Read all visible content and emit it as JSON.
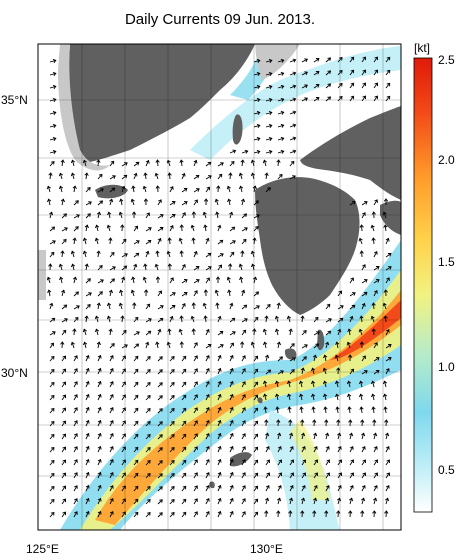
{
  "title": "Daily Currents 09 Jun. 2013.",
  "colorbar": {
    "unit": "[kt]",
    "ticks": [
      {
        "value": 2.5,
        "label": "2.5"
      },
      {
        "value": 2.0,
        "label": "2.0"
      },
      {
        "value": 1.5,
        "label": "1.5"
      },
      {
        "value": 1.0,
        "label": "1.0"
      },
      {
        "value": 0.5,
        "label": "0.5"
      }
    ],
    "min": 0.25,
    "max": 2.5,
    "colors": [
      "#ffffff",
      "#bfeef7",
      "#7fd8ee",
      "#b8ecc8",
      "#f2f280",
      "#ffd24a",
      "#ff9a2a",
      "#f24a18",
      "#e01a0a"
    ]
  },
  "axes": {
    "lat_labels": [
      {
        "value": 35,
        "label": "35°N"
      },
      {
        "value": 30,
        "label": "30°N"
      }
    ],
    "lon_labels": [
      {
        "value": 125,
        "label": "125°E"
      },
      {
        "value": 130,
        "label": "130°E"
      }
    ],
    "lon_range": [
      125,
      132.5
    ],
    "lat_range": [
      27.5,
      36
    ],
    "grid": true
  },
  "colors": {
    "land": "#606060",
    "coast_shelf": "#c8c8c8",
    "sea": "#ffffff",
    "arrow": "#000000"
  },
  "currents": {
    "kuroshio_main": "high speed band from southwest to northeast",
    "tsushima_branch": "moderate speed band toward northeast"
  }
}
